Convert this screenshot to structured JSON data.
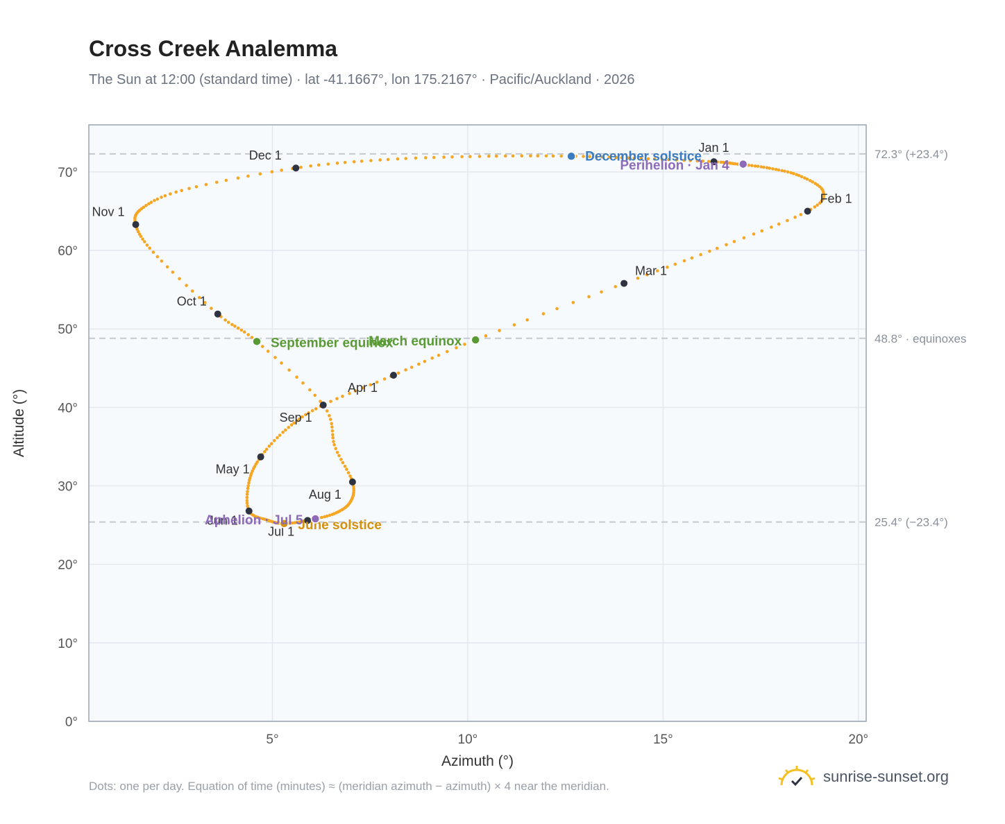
{
  "header": {
    "title": "Cross Creek Analemma",
    "subtitle": "The Sun at 12:00 (standard time) · lat -41.1667°, lon 175.2167° · Pacific/Auckland · 2026"
  },
  "footer": {
    "note": "Dots: one per day. Equation of time (minutes) ≈ (meridian azimuth − azimuth) × 4 near the meridian.",
    "brand": "sunrise-sunset.org"
  },
  "colors": {
    "analemma": "#f5a623",
    "month_dot": "#2d3340",
    "equinox": "#5a9a35",
    "december_solstice": "#3b7bbf",
    "june_solstice": "#d4900f",
    "perihelion": "#8e6bb8",
    "reference_line": "#c4c9d0",
    "grid": "#e4e8ee",
    "plot_bg": "#f7fafd"
  },
  "chart_data": {
    "type": "scatter",
    "xlabel": "Azimuth (°)",
    "ylabel": "Altitude (°)",
    "xlim": [
      0.3,
      20.2
    ],
    "ylim": [
      0,
      76
    ],
    "x_ticks": [
      5,
      10,
      15,
      20
    ],
    "x_tick_labels": [
      "5°",
      "10°",
      "15°",
      "20°"
    ],
    "y_ticks": [
      0,
      10,
      20,
      30,
      40,
      50,
      60,
      70
    ],
    "y_tick_labels": [
      "0°",
      "10°",
      "20°",
      "30°",
      "40°",
      "50°",
      "60°",
      "70°"
    ],
    "grid": true,
    "reference_lines": [
      {
        "y": 72.3,
        "label": "72.3° (+23.4°)"
      },
      {
        "y": 48.8,
        "label": "48.8° · equinoxes"
      },
      {
        "y": 25.4,
        "label": "25.4° (−23.4°)"
      }
    ],
    "analemma_path": [
      [
        16.3,
        71.3
      ],
      [
        16.9,
        71.0
      ],
      [
        17.7,
        70.5
      ],
      [
        18.5,
        69.5
      ],
      [
        19.1,
        67.5
      ],
      [
        18.7,
        65.0
      ],
      [
        16.5,
        60.5
      ],
      [
        14.0,
        55.8
      ],
      [
        10.2,
        48.6
      ],
      [
        8.1,
        44.1
      ],
      [
        6.3,
        40.3
      ],
      [
        5.4,
        37.4
      ],
      [
        4.7,
        33.7
      ],
      [
        4.4,
        30.5
      ],
      [
        4.4,
        26.8
      ],
      [
        4.9,
        25.6
      ],
      [
        5.3,
        25.2
      ],
      [
        5.9,
        25.6
      ],
      [
        6.6,
        26.5
      ],
      [
        7.0,
        28.0
      ],
      [
        7.05,
        30.5
      ],
      [
        6.6,
        35.0
      ],
      [
        6.3,
        40.3
      ],
      [
        4.6,
        48.4
      ],
      [
        3.6,
        51.9
      ],
      [
        2.0,
        59.5
      ],
      [
        1.5,
        63.3
      ],
      [
        1.7,
        65.5
      ],
      [
        2.8,
        67.8
      ],
      [
        5.6,
        70.5
      ],
      [
        8.0,
        71.6
      ],
      [
        10.5,
        72.0
      ],
      [
        12.7,
        72.0
      ],
      [
        14.5,
        71.7
      ],
      [
        16.3,
        71.3
      ]
    ],
    "month_markers": [
      {
        "label": "Jan 1",
        "x": 16.3,
        "y": 71.3
      },
      {
        "label": "Feb 1",
        "x": 18.7,
        "y": 65.0
      },
      {
        "label": "Mar 1",
        "x": 14.0,
        "y": 55.8
      },
      {
        "label": "Apr 1",
        "x": 8.1,
        "y": 44.1
      },
      {
        "label": "May 1",
        "x": 4.7,
        "y": 33.7
      },
      {
        "label": "Jun 1",
        "x": 4.4,
        "y": 26.8
      },
      {
        "label": "Jul 1",
        "x": 5.9,
        "y": 25.6
      },
      {
        "label": "Aug 1",
        "x": 7.05,
        "y": 30.5
      },
      {
        "label": "Sep 1",
        "x": 6.3,
        "y": 40.3
      },
      {
        "label": "Oct 1",
        "x": 3.6,
        "y": 51.9
      },
      {
        "label": "Nov 1",
        "x": 1.5,
        "y": 63.3
      },
      {
        "label": "Dec 1",
        "x": 5.6,
        "y": 70.5
      }
    ],
    "events": [
      {
        "label": "December solstice",
        "x": 12.65,
        "y": 72.0,
        "color_key": "december_solstice"
      },
      {
        "label": "Perihelion · Jan 4",
        "x": 17.05,
        "y": 71.0,
        "color_key": "perihelion"
      },
      {
        "label": "March equinox",
        "x": 10.2,
        "y": 48.6,
        "color_key": "equinox"
      },
      {
        "label": "September equinox",
        "x": 4.6,
        "y": 48.4,
        "color_key": "equinox"
      },
      {
        "label": "June solstice",
        "x": 5.3,
        "y": 25.2,
        "color_key": "june_solstice"
      },
      {
        "label": "Aphelion · Jul 5",
        "x": 6.1,
        "y": 25.8,
        "color_key": "perihelion"
      }
    ]
  }
}
